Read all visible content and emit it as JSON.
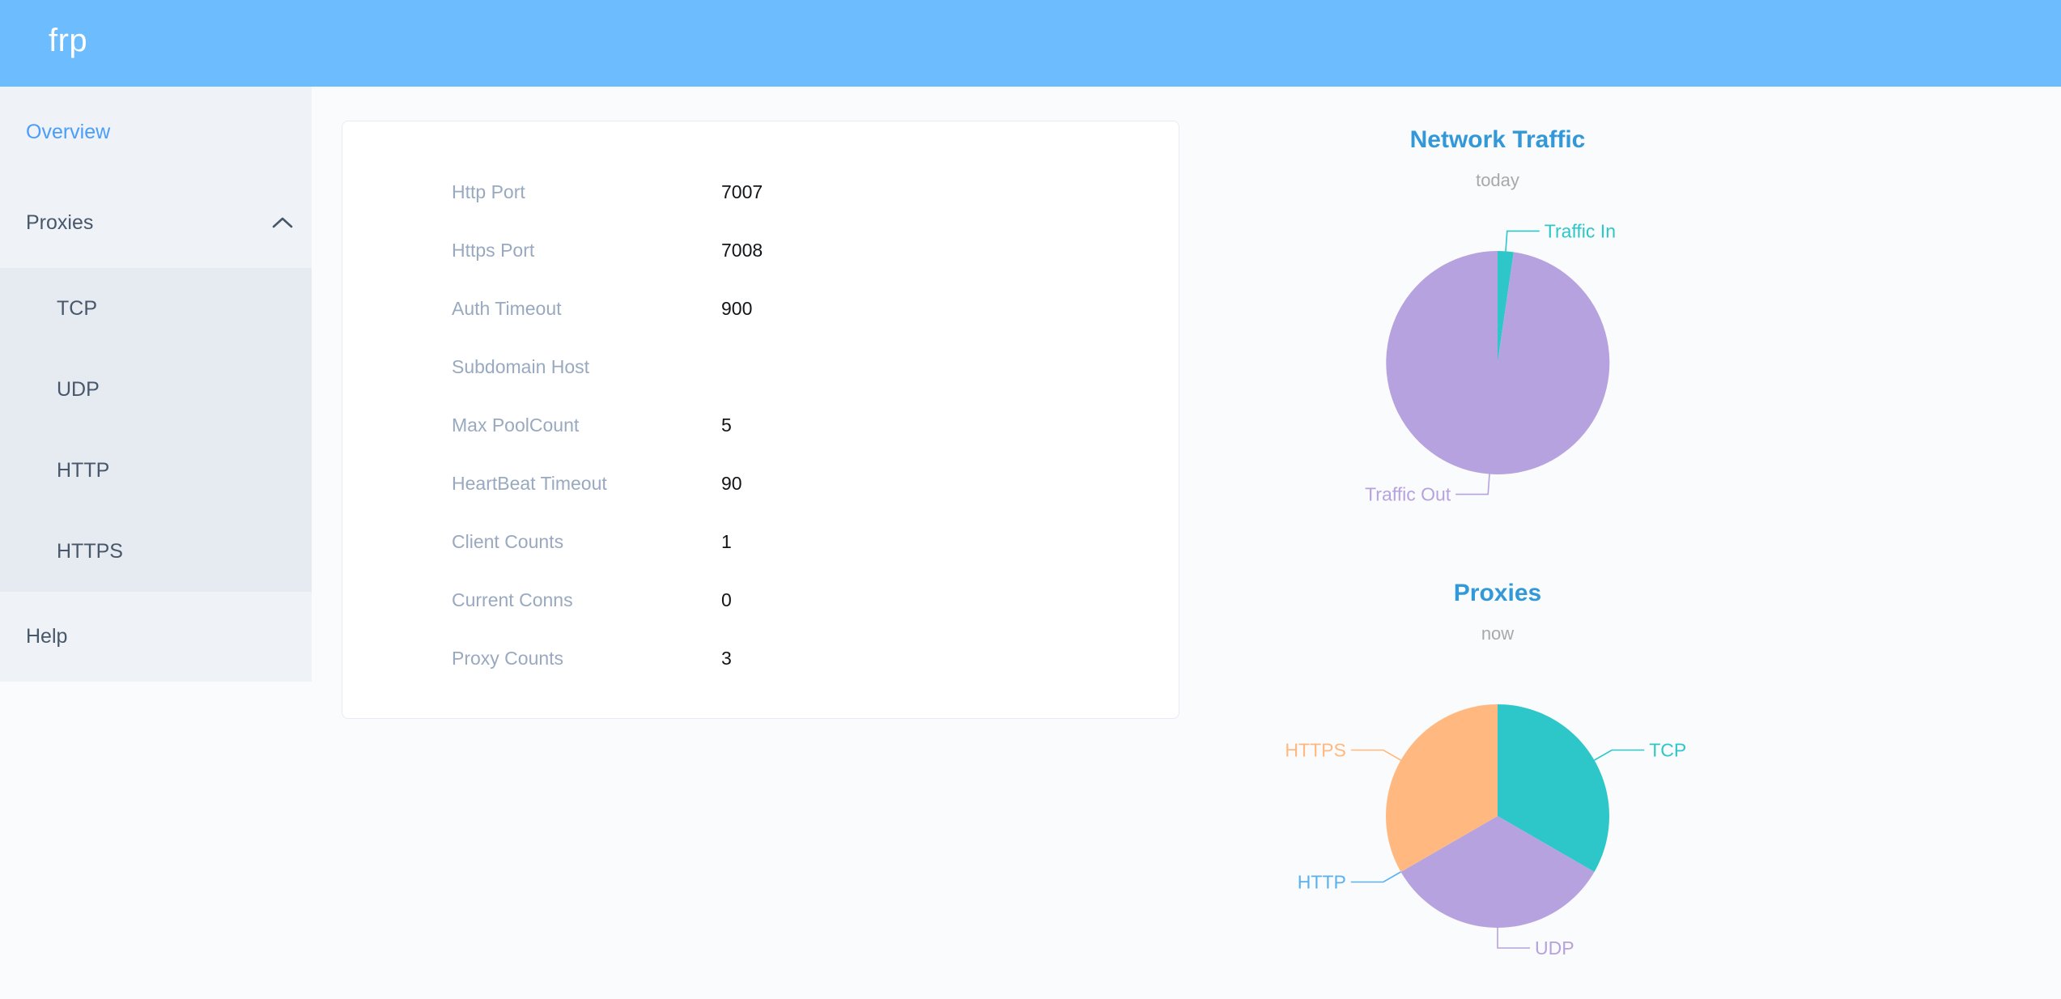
{
  "header": {
    "logo": "frp"
  },
  "sidebar": {
    "overview_label": "Overview",
    "proxies_label": "Proxies",
    "proxies_expanded": true,
    "proxy_children": [
      "TCP",
      "UDP",
      "HTTP",
      "HTTPS"
    ],
    "help_label": "Help"
  },
  "icons": {
    "proxies_chevron": "chevron-up"
  },
  "server_info": {
    "rows": [
      {
        "label": "Http Port",
        "value": "7007"
      },
      {
        "label": "Https Port",
        "value": "7008"
      },
      {
        "label": "Auth Timeout",
        "value": "900"
      },
      {
        "label": "Subdomain Host",
        "value": ""
      },
      {
        "label": "Max PoolCount",
        "value": "5"
      },
      {
        "label": "HeartBeat Timeout",
        "value": "90"
      },
      {
        "label": "Client Counts",
        "value": "1"
      },
      {
        "label": "Current Conns",
        "value": "0"
      },
      {
        "label": "Proxy Counts",
        "value": "3"
      }
    ]
  },
  "chart_data": [
    {
      "type": "pie",
      "title": "Network Traffic",
      "subtitle": "today",
      "legend_position": "none",
      "labels_on": "outside-with-leader-lines",
      "series": [
        {
          "name": "Traffic In",
          "value_percent": 2.3,
          "color": "#2ec7c9"
        },
        {
          "name": "Traffic Out",
          "value_percent": 97.7,
          "color": "#b6a2de"
        }
      ]
    },
    {
      "type": "pie",
      "title": "Proxies",
      "subtitle": "now",
      "legend_position": "none",
      "labels_on": "outside-with-leader-lines",
      "series": [
        {
          "name": "TCP",
          "value": 1,
          "color": "#2ec7c9"
        },
        {
          "name": "UDP",
          "value": 1,
          "color": "#b6a2de"
        },
        {
          "name": "HTTP",
          "value": 0,
          "color": "#5ab1ef"
        },
        {
          "name": "HTTPS",
          "value": 1,
          "color": "#ffb980"
        }
      ]
    }
  ],
  "colors": {
    "header_bg": "#6cbcfe",
    "sidebar_bg": "#eff2f7",
    "submenu_bg": "#e6eaf1",
    "menu_text": "#48576a",
    "active_link": "#4a9ef9",
    "label_gray": "#99a9bf",
    "chart_title": "#3398d8",
    "page_bg": "#fafbfc"
  }
}
